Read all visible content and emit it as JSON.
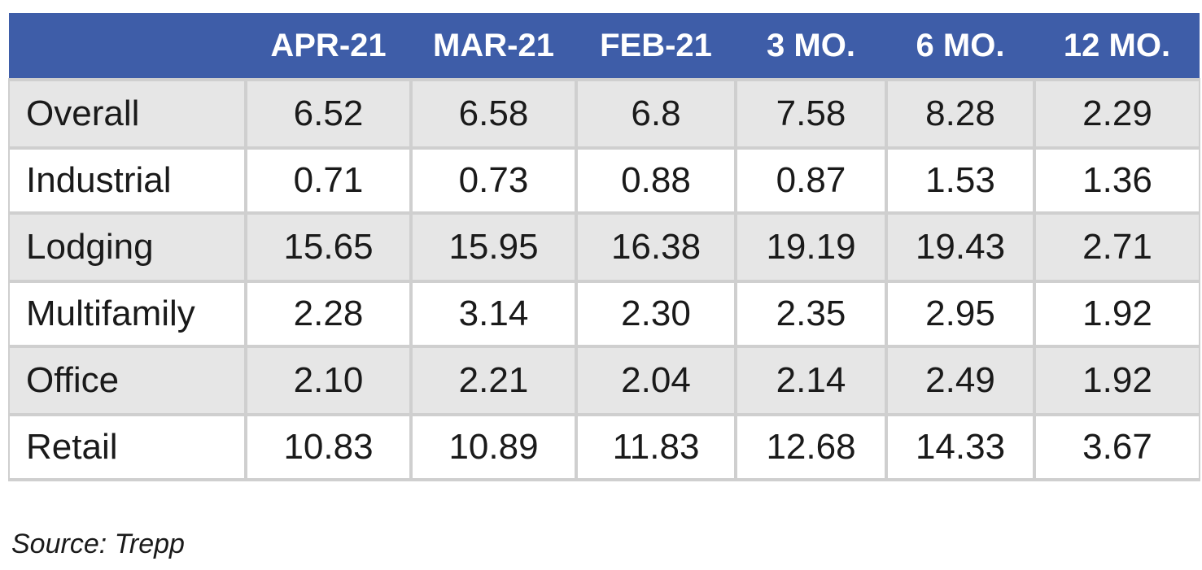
{
  "chart_data": {
    "type": "table",
    "columns": [
      "",
      "APR-21",
      "MAR-21",
      "FEB-21",
      "3 MO.",
      "6 MO.",
      "12 MO."
    ],
    "rows": [
      {
        "label": "Overall",
        "values": [
          "6.52",
          "6.58",
          "6.8",
          "7.58",
          "8.28",
          "2.29"
        ]
      },
      {
        "label": "Industrial",
        "values": [
          "0.71",
          "0.73",
          "0.88",
          "0.87",
          "1.53",
          "1.36"
        ]
      },
      {
        "label": "Lodging",
        "values": [
          "15.65",
          "15.95",
          "16.38",
          "19.19",
          "19.43",
          "2.71"
        ]
      },
      {
        "label": "Multifamily",
        "values": [
          "2.28",
          "3.14",
          "2.30",
          "2.35",
          "2.95",
          "1.92"
        ]
      },
      {
        "label": "Office",
        "values": [
          "2.10",
          "2.21",
          "2.04",
          "2.14",
          "2.49",
          "1.92"
        ]
      },
      {
        "label": "Retail",
        "values": [
          "10.83",
          "10.89",
          "11.83",
          "12.68",
          "14.33",
          "3.67"
        ]
      }
    ],
    "header_color": "#3e5da8",
    "row_shade_color": "#e6e6e6"
  },
  "source": "Source: Trepp"
}
